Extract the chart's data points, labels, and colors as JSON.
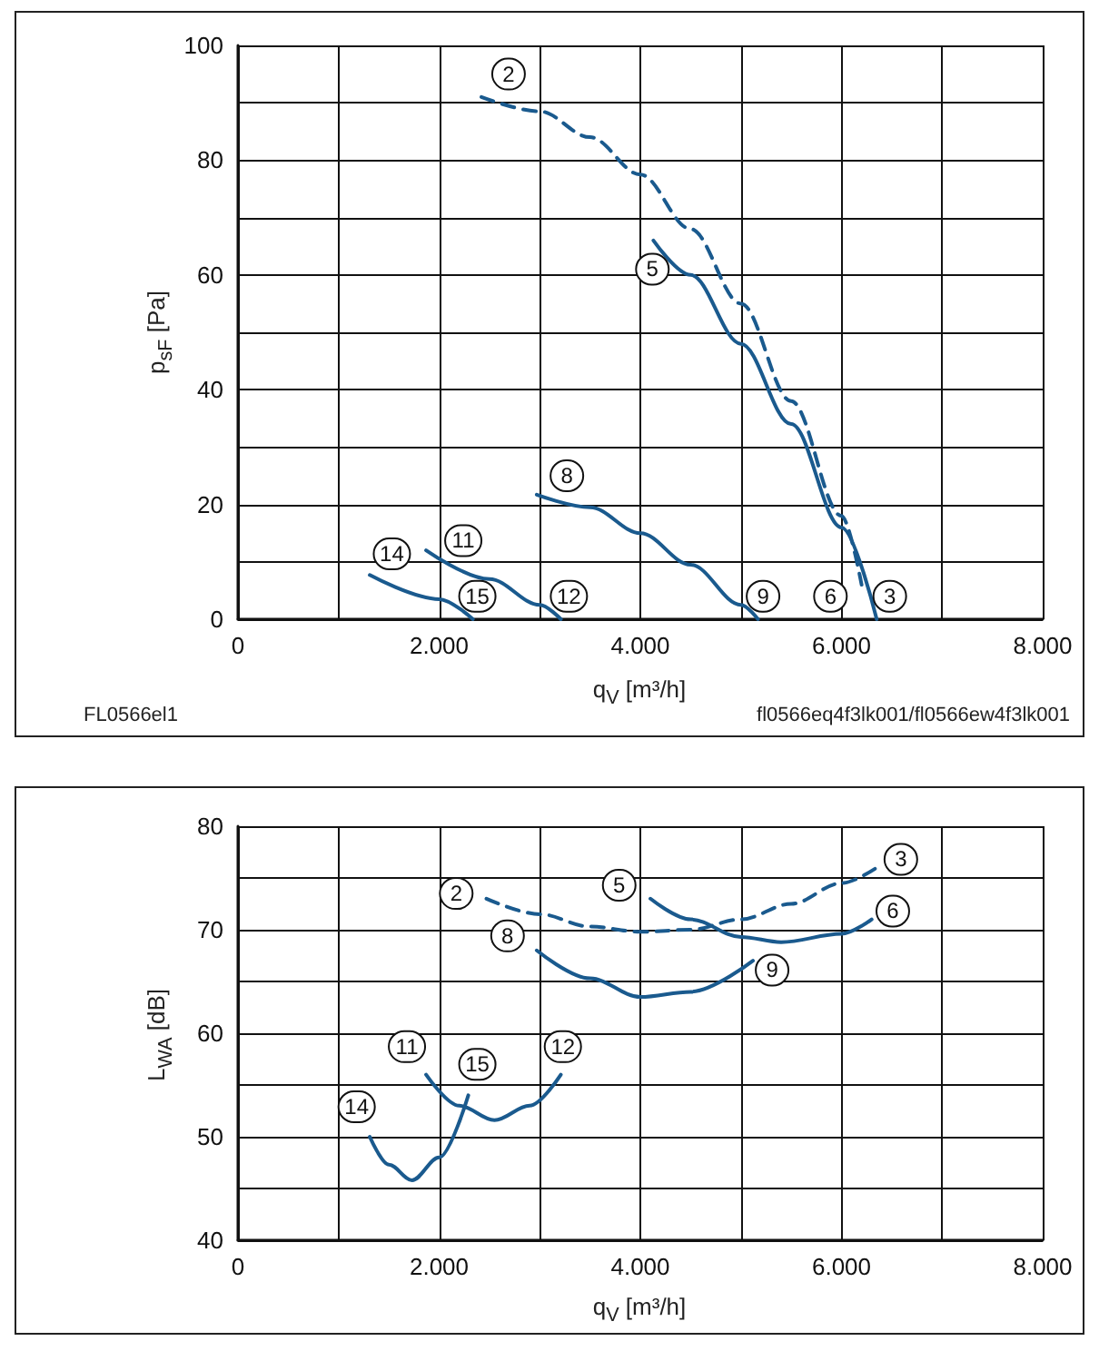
{
  "chart_data": [
    {
      "type": "line",
      "xlabel": "q$_{V}$ [m³/h]",
      "ylabel": "p$_{sF}$ [Pa]",
      "grid": true,
      "marker": "none",
      "xlim": [
        0,
        8000
      ],
      "xticks": [
        0,
        {
          "value": 1000,
          "label": null
        },
        {
          "value": 2000,
          "label": "2.000"
        },
        {
          "value": 3000,
          "label": null
        },
        {
          "value": 4000,
          "label": "4.000"
        },
        {
          "value": 5000,
          "label": null
        },
        {
          "value": 6000,
          "label": "6.000"
        },
        {
          "value": 7000,
          "label": null
        },
        {
          "value": 8000,
          "label": "8.000"
        }
      ],
      "ylim": [
        0,
        100
      ],
      "yticks": [
        0,
        {
          "value": 10,
          "label": null
        },
        20,
        {
          "value": 30,
          "label": null
        },
        40,
        {
          "value": 50,
          "label": null
        },
        60,
        {
          "value": 70,
          "label": null
        },
        80,
        {
          "value": 90,
          "label": null
        },
        100
      ],
      "series": [
        {
          "color": "#1a5a8e",
          "line_style": "dashed",
          "x": [
            2420,
            3000,
            3500,
            4000,
            4500,
            5000,
            5500,
            6000,
            6200
          ],
          "values": [
            91,
            88.5,
            84,
            77.5,
            68,
            55,
            38,
            18,
            6
          ]
        },
        {
          "color": "#1a5a8e",
          "x": [
            4130,
            4500,
            5000,
            5500,
            6000,
            6350
          ],
          "values": [
            66,
            60,
            48,
            34,
            16,
            0
          ]
        },
        {
          "color": "#1a5a8e",
          "x": [
            2970,
            3500,
            4000,
            4500,
            5000,
            5170
          ],
          "values": [
            21.7,
            19.5,
            15,
            9.5,
            2.5,
            0
          ]
        },
        {
          "color": "#1a5a8e",
          "x": [
            1870,
            2500,
            3000,
            3210
          ],
          "values": [
            12,
            7,
            2.5,
            0
          ]
        },
        {
          "color": "#1a5a8e",
          "x": [
            1310,
            2000,
            2335
          ],
          "values": [
            7.7,
            3.5,
            0
          ]
        }
      ],
      "annotations": [
        {
          "text": "2",
          "x": 2690,
          "y": 95
        },
        {
          "text": "5",
          "x": 4120,
          "y": 61
        },
        {
          "text": "8",
          "x": 3270,
          "y": 25
        },
        {
          "text": "11",
          "x": 2240,
          "y": 13.7
        },
        {
          "text": "14",
          "x": 1530,
          "y": 11.4
        },
        {
          "text": "15",
          "x": 2380,
          "y": 4
        },
        {
          "text": "12",
          "x": 3290,
          "y": 4
        },
        {
          "text": "9",
          "x": 5220,
          "y": 4
        },
        {
          "text": "6",
          "x": 5890,
          "y": 4
        },
        {
          "text": "3",
          "x": 6480,
          "y": 4
        },
        "FL0566el1",
        "fl0566eq4f3lk001/fl0566ew4f3lk001"
      ]
    },
    {
      "type": "line",
      "xlabel": "q$_{V}$ [m³/h]",
      "ylabel": "L$_{WA}$ [dB]",
      "grid": true,
      "marker": "none",
      "xlim": [
        0,
        8000
      ],
      "xticks": [
        0,
        {
          "value": 1000,
          "label": null
        },
        {
          "value": 2000,
          "label": "2.000"
        },
        {
          "value": 3000,
          "label": null
        },
        {
          "value": 4000,
          "label": "4.000"
        },
        {
          "value": 5000,
          "label": null
        },
        {
          "value": 6000,
          "label": "6.000"
        },
        {
          "value": 7000,
          "label": null
        },
        {
          "value": 8000,
          "label": "8.000"
        }
      ],
      "ylim": [
        40,
        80
      ],
      "yticks": [
        40,
        {
          "value": 45,
          "label": null
        },
        50,
        {
          "value": 55,
          "label": null
        },
        60,
        {
          "value": 65,
          "label": null
        },
        70,
        {
          "value": 75,
          "label": null
        },
        80
      ],
      "series": [
        {
          "color": "#1a5a8e",
          "line_style": "dashed",
          "x": [
            2470,
            3000,
            3500,
            4000,
            4500,
            5000,
            5500,
            6000,
            6350
          ],
          "values": [
            73,
            71.5,
            70.3,
            69.8,
            70,
            71,
            72.5,
            74.5,
            76
          ]
        },
        {
          "color": "#1a5a8e",
          "x": [
            4100,
            4500,
            5000,
            5400,
            6000,
            6300
          ],
          "values": [
            73,
            71,
            69.3,
            68.8,
            69.6,
            71
          ]
        },
        {
          "color": "#1a5a8e",
          "x": [
            2970,
            3500,
            4000,
            4500,
            5120
          ],
          "values": [
            68,
            65.3,
            63.5,
            64,
            67
          ]
        },
        {
          "color": "#1a5a8e",
          "x": [
            1870,
            2200,
            2550,
            2900,
            3210
          ],
          "values": [
            56,
            53,
            51.6,
            53,
            56
          ]
        },
        {
          "color": "#1a5a8e",
          "x": [
            1310,
            1500,
            1730,
            2000,
            2290
          ],
          "values": [
            50,
            47.3,
            45.8,
            48,
            54
          ]
        }
      ],
      "annotations": [
        {
          "text": "2",
          "x": 2170,
          "y": 73.5
        },
        {
          "text": "5",
          "x": 3790,
          "y": 74.3
        },
        {
          "text": "3",
          "x": 6590,
          "y": 76.8
        },
        {
          "text": "6",
          "x": 6510,
          "y": 71.8
        },
        {
          "text": "8",
          "x": 2680,
          "y": 69.4
        },
        {
          "text": "9",
          "x": 5310,
          "y": 66.1
        },
        {
          "text": "11",
          "x": 1680,
          "y": 58.7
        },
        {
          "text": "15",
          "x": 2380,
          "y": 57
        },
        {
          "text": "12",
          "x": 3230,
          "y": 58.7
        },
        {
          "text": "14",
          "x": 1180,
          "y": 52.9
        }
      ]
    }
  ]
}
